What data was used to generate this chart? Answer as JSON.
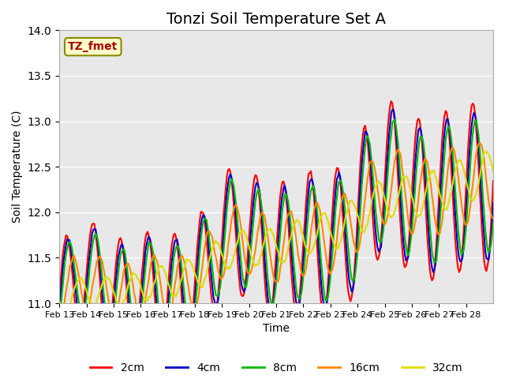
{
  "title": "Tonzi Soil Temperature Set A",
  "xlabel": "Time",
  "ylabel": "Soil Temperature (C)",
  "ylim": [
    11.0,
    14.0
  ],
  "yticks": [
    11.0,
    11.5,
    12.0,
    12.5,
    13.0,
    13.5,
    14.0
  ],
  "xtick_labels": [
    "Feb 13",
    "Feb 14",
    "Feb 15",
    "Feb 16",
    "Feb 17",
    "Feb 18",
    "Feb 19",
    "Feb 20",
    "Feb 21",
    "Feb 22",
    "Feb 23",
    "Feb 24",
    "Feb 25",
    "Feb 26",
    "Feb 27",
    "Feb 28"
  ],
  "colors": {
    "2cm": "#ff0000",
    "4cm": "#0000cc",
    "8cm": "#00bb00",
    "16cm": "#ff8800",
    "32cm": "#dddd00"
  },
  "legend_label": "TZ_fmet",
  "legend_text_color": "#aa0000",
  "legend_bg": "#ffffcc",
  "legend_border": "#888800",
  "bg_color": "#e8e8e8",
  "grid_color": "#ffffff",
  "title_fontsize": 14,
  "axis_fontsize": 10,
  "legend_fontsize": 10,
  "line_width": 1.5
}
